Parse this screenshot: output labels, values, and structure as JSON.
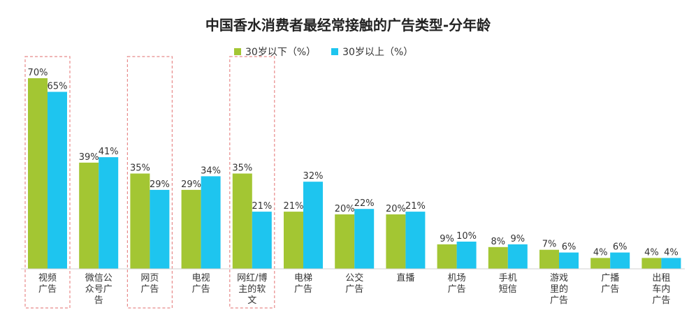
{
  "chart_data": {
    "type": "bar",
    "title": "中国香水消费者最经常接触的广告类型-分年龄",
    "categories": [
      [
        "视频",
        "广告"
      ],
      [
        "微信公",
        "众号广",
        "告"
      ],
      [
        "网页",
        "广告"
      ],
      [
        "电视",
        "广告"
      ],
      [
        "网红/博",
        "主的软",
        "文"
      ],
      [
        "电梯",
        "广告"
      ],
      [
        "公交",
        "广告"
      ],
      [
        "直播"
      ],
      [
        "机场",
        "广告"
      ],
      [
        "手机",
        "短信"
      ],
      [
        "游戏",
        "里的",
        "广告"
      ],
      [
        "广播",
        "广告"
      ],
      [
        "出租",
        "车内",
        "广告"
      ]
    ],
    "series": [
      {
        "name": "30岁以下（%）",
        "color": "#a3c633",
        "values": [
          70,
          39,
          35,
          29,
          35,
          21,
          20,
          20,
          9,
          8,
          7,
          4,
          4
        ],
        "labels": [
          "70%",
          "39%",
          "35%",
          "29%",
          "35%",
          "21%",
          "20%",
          "20%",
          "9%",
          "8%",
          "7%",
          "4%",
          "4%"
        ]
      },
      {
        "name": "30岁以上（%）",
        "color": "#1ec5ef",
        "values": [
          65,
          41,
          29,
          34,
          21,
          32,
          22,
          21,
          10,
          9,
          6,
          6,
          4
        ],
        "labels": [
          "65%",
          "41%",
          "29%",
          "34%",
          "21%",
          "32%",
          "22%",
          "21%",
          "10%",
          "9%",
          "6%",
          "6%",
          "4%"
        ]
      }
    ],
    "highlighted_categories": [
      0,
      2,
      4
    ],
    "highlight_color": "#e88a8a",
    "ylim": [
      0,
      70
    ],
    "xlabel": "",
    "ylabel": ""
  }
}
